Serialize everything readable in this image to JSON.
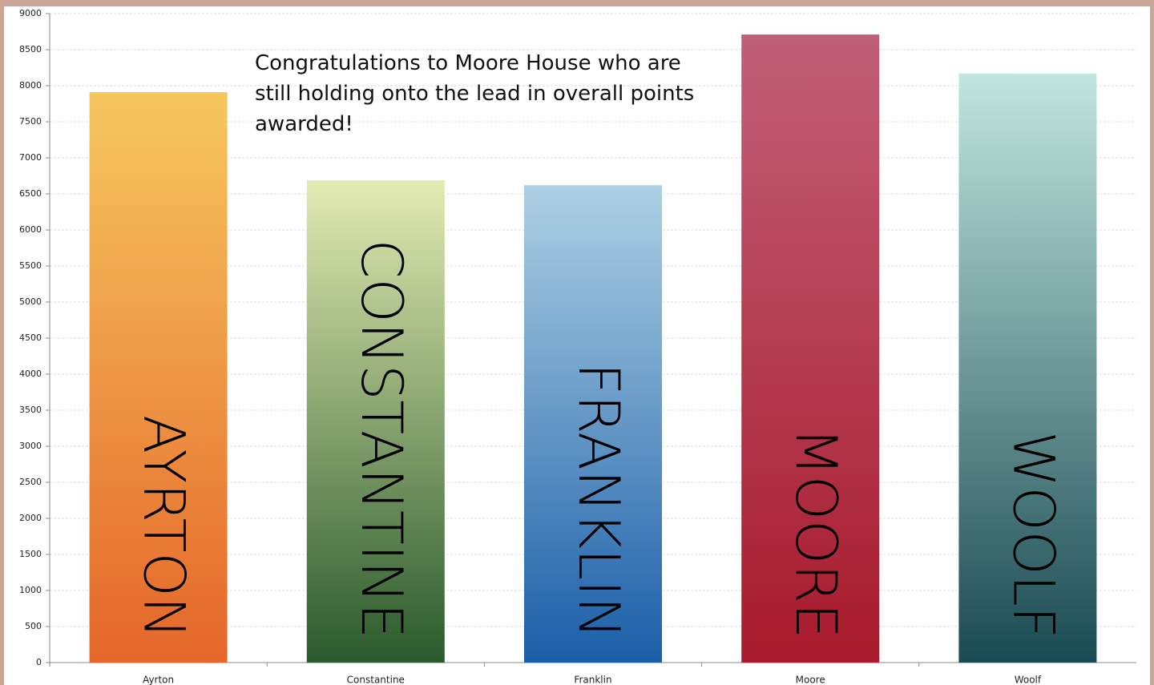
{
  "chart_data": {
    "type": "bar",
    "annotation": "Congratulations to Moore House who are still holding onto the lead in overall points awarded!",
    "categories": [
      "Ayrton",
      "Constantine",
      "Franklin",
      "Moore",
      "Woolf"
    ],
    "bar_labels": [
      "AYRTON",
      "CONSTANTINE",
      "FRANKLIN",
      "MOORE",
      "WOOLF"
    ],
    "values": [
      7910,
      6690,
      6620,
      8710,
      8170
    ],
    "colors": [
      [
        "#f6c75f",
        "#e5662a"
      ],
      [
        "#e3ebb2",
        "#2a5a2c"
      ],
      [
        "#aed0e4",
        "#1a5ea8"
      ],
      [
        "#c15f78",
        "#a81a2c"
      ],
      [
        "#c2e6df",
        "#1a4a52"
      ]
    ],
    "ylim": [
      0,
      9000
    ],
    "yticks": [
      0,
      500,
      1000,
      1500,
      2000,
      2500,
      3000,
      3500,
      4000,
      4500,
      5000,
      5500,
      6000,
      6500,
      7000,
      7500,
      8000,
      8500,
      9000
    ],
    "grid": true
  }
}
